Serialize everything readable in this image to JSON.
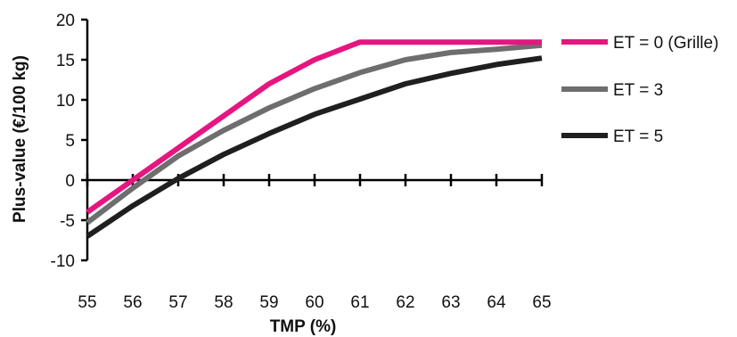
{
  "chart_data": {
    "type": "line",
    "title": "",
    "xlabel": "TMP (%)",
    "ylabel": "Plus-value (€/100 kg)",
    "xlim": [
      55,
      65
    ],
    "ylim": [
      -10,
      20
    ],
    "x": [
      55,
      56,
      57,
      58,
      59,
      60,
      61,
      62,
      63,
      64,
      65
    ],
    "x_ticks": [
      "55",
      "56",
      "57",
      "58",
      "59",
      "60",
      "61",
      "62",
      "63",
      "64",
      "65"
    ],
    "y_ticks": [
      "20",
      "15",
      "10",
      "5",
      "0",
      "-5",
      "-10"
    ],
    "grid": false,
    "legend_position": "right",
    "series": [
      {
        "name": "ET = 0 (Grille)",
        "color": "#e6157f",
        "values": [
          -4,
          0,
          4,
          8,
          12,
          15,
          17.2,
          17.2,
          17.2,
          17.2,
          17.2
        ]
      },
      {
        "name": "ET = 3",
        "color": "#6e6e6e",
        "values": [
          -5.3,
          -1,
          3,
          6.2,
          9,
          11.4,
          13.4,
          15,
          15.9,
          16.3,
          16.8
        ]
      },
      {
        "name": "ET = 5",
        "color": "#1f1f1f",
        "values": [
          -7,
          -3.2,
          0.2,
          3.2,
          5.8,
          8.2,
          10.1,
          12,
          13.3,
          14.4,
          15.2
        ]
      }
    ]
  }
}
